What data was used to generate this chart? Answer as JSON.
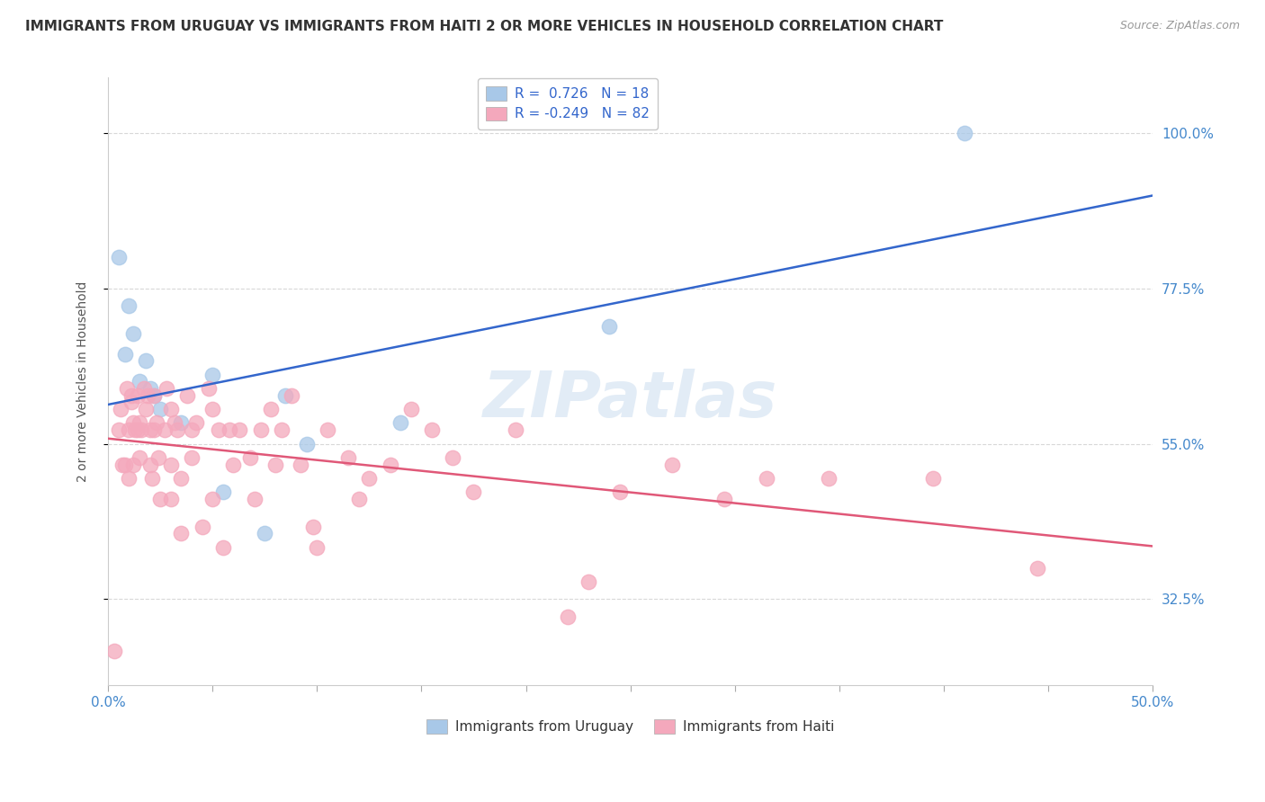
{
  "title": "IMMIGRANTS FROM URUGUAY VS IMMIGRANTS FROM HAITI 2 OR MORE VEHICLES IN HOUSEHOLD CORRELATION CHART",
  "source": "Source: ZipAtlas.com",
  "ylabel": "2 or more Vehicles in Household",
  "yaxis_ticks": [
    32.5,
    55.0,
    77.5,
    100.0
  ],
  "x_left_label": "0.0%",
  "x_right_label": "50.0%",
  "uruguay_points": [
    [
      0.5,
      82.0
    ],
    [
      0.8,
      68.0
    ],
    [
      1.0,
      75.0
    ],
    [
      1.2,
      71.0
    ],
    [
      1.5,
      64.0
    ],
    [
      1.8,
      67.0
    ],
    [
      2.0,
      63.0
    ],
    [
      2.2,
      62.0
    ],
    [
      2.5,
      60.0
    ],
    [
      3.5,
      58.0
    ],
    [
      5.0,
      65.0
    ],
    [
      5.5,
      48.0
    ],
    [
      7.5,
      42.0
    ],
    [
      8.5,
      62.0
    ],
    [
      9.5,
      55.0
    ],
    [
      14.0,
      58.0
    ],
    [
      24.0,
      72.0
    ],
    [
      41.0,
      100.0
    ]
  ],
  "haiti_points": [
    [
      0.3,
      25.0
    ],
    [
      0.5,
      57.0
    ],
    [
      0.6,
      60.0
    ],
    [
      0.7,
      52.0
    ],
    [
      0.8,
      52.0
    ],
    [
      0.9,
      63.0
    ],
    [
      1.0,
      57.0
    ],
    [
      1.0,
      50.0
    ],
    [
      1.1,
      61.0
    ],
    [
      1.1,
      62.0
    ],
    [
      1.2,
      52.0
    ],
    [
      1.2,
      58.0
    ],
    [
      1.3,
      57.0
    ],
    [
      1.4,
      62.0
    ],
    [
      1.4,
      57.0
    ],
    [
      1.5,
      53.0
    ],
    [
      1.5,
      58.0
    ],
    [
      1.6,
      57.0
    ],
    [
      1.7,
      63.0
    ],
    [
      1.8,
      60.0
    ],
    [
      1.9,
      62.0
    ],
    [
      2.0,
      57.0
    ],
    [
      2.0,
      52.0
    ],
    [
      2.1,
      50.0
    ],
    [
      2.2,
      62.0
    ],
    [
      2.2,
      57.0
    ],
    [
      2.3,
      58.0
    ],
    [
      2.4,
      53.0
    ],
    [
      2.5,
      47.0
    ],
    [
      2.7,
      57.0
    ],
    [
      2.8,
      63.0
    ],
    [
      3.0,
      60.0
    ],
    [
      3.0,
      52.0
    ],
    [
      3.0,
      47.0
    ],
    [
      3.2,
      58.0
    ],
    [
      3.3,
      57.0
    ],
    [
      3.5,
      50.0
    ],
    [
      3.5,
      42.0
    ],
    [
      3.8,
      62.0
    ],
    [
      4.0,
      57.0
    ],
    [
      4.0,
      53.0
    ],
    [
      4.2,
      58.0
    ],
    [
      4.5,
      43.0
    ],
    [
      4.8,
      63.0
    ],
    [
      5.0,
      60.0
    ],
    [
      5.0,
      47.0
    ],
    [
      5.3,
      57.0
    ],
    [
      5.5,
      40.0
    ],
    [
      5.8,
      57.0
    ],
    [
      6.0,
      52.0
    ],
    [
      6.3,
      57.0
    ],
    [
      6.8,
      53.0
    ],
    [
      7.0,
      47.0
    ],
    [
      7.3,
      57.0
    ],
    [
      7.8,
      60.0
    ],
    [
      8.0,
      52.0
    ],
    [
      8.3,
      57.0
    ],
    [
      8.8,
      62.0
    ],
    [
      9.2,
      52.0
    ],
    [
      9.8,
      43.0
    ],
    [
      10.0,
      40.0
    ],
    [
      10.5,
      57.0
    ],
    [
      11.5,
      53.0
    ],
    [
      12.0,
      47.0
    ],
    [
      12.5,
      50.0
    ],
    [
      13.5,
      52.0
    ],
    [
      14.5,
      60.0
    ],
    [
      15.5,
      57.0
    ],
    [
      16.5,
      53.0
    ],
    [
      17.5,
      48.0
    ],
    [
      19.5,
      57.0
    ],
    [
      22.0,
      30.0
    ],
    [
      23.0,
      35.0
    ],
    [
      24.5,
      48.0
    ],
    [
      27.0,
      52.0
    ],
    [
      29.5,
      47.0
    ],
    [
      31.5,
      50.0
    ],
    [
      34.5,
      50.0
    ],
    [
      39.5,
      50.0
    ],
    [
      44.5,
      37.0
    ]
  ],
  "xlim": [
    0.0,
    50.0
  ],
  "ylim": [
    20.0,
    108.0
  ],
  "background_color": "#ffffff",
  "grid_color": "#d8d8d8",
  "uruguay_color": "#a8c8e8",
  "haiti_color": "#f4a8bc",
  "trendline_uruguay_color": "#3366cc",
  "trendline_haiti_color": "#e05878",
  "watermark_text": "ZIPatlas",
  "watermark_color": "#d0e0f0",
  "title_fontsize": 11,
  "axis_label_fontsize": 10,
  "tick_fontsize": 11,
  "tick_color": "#4488cc"
}
